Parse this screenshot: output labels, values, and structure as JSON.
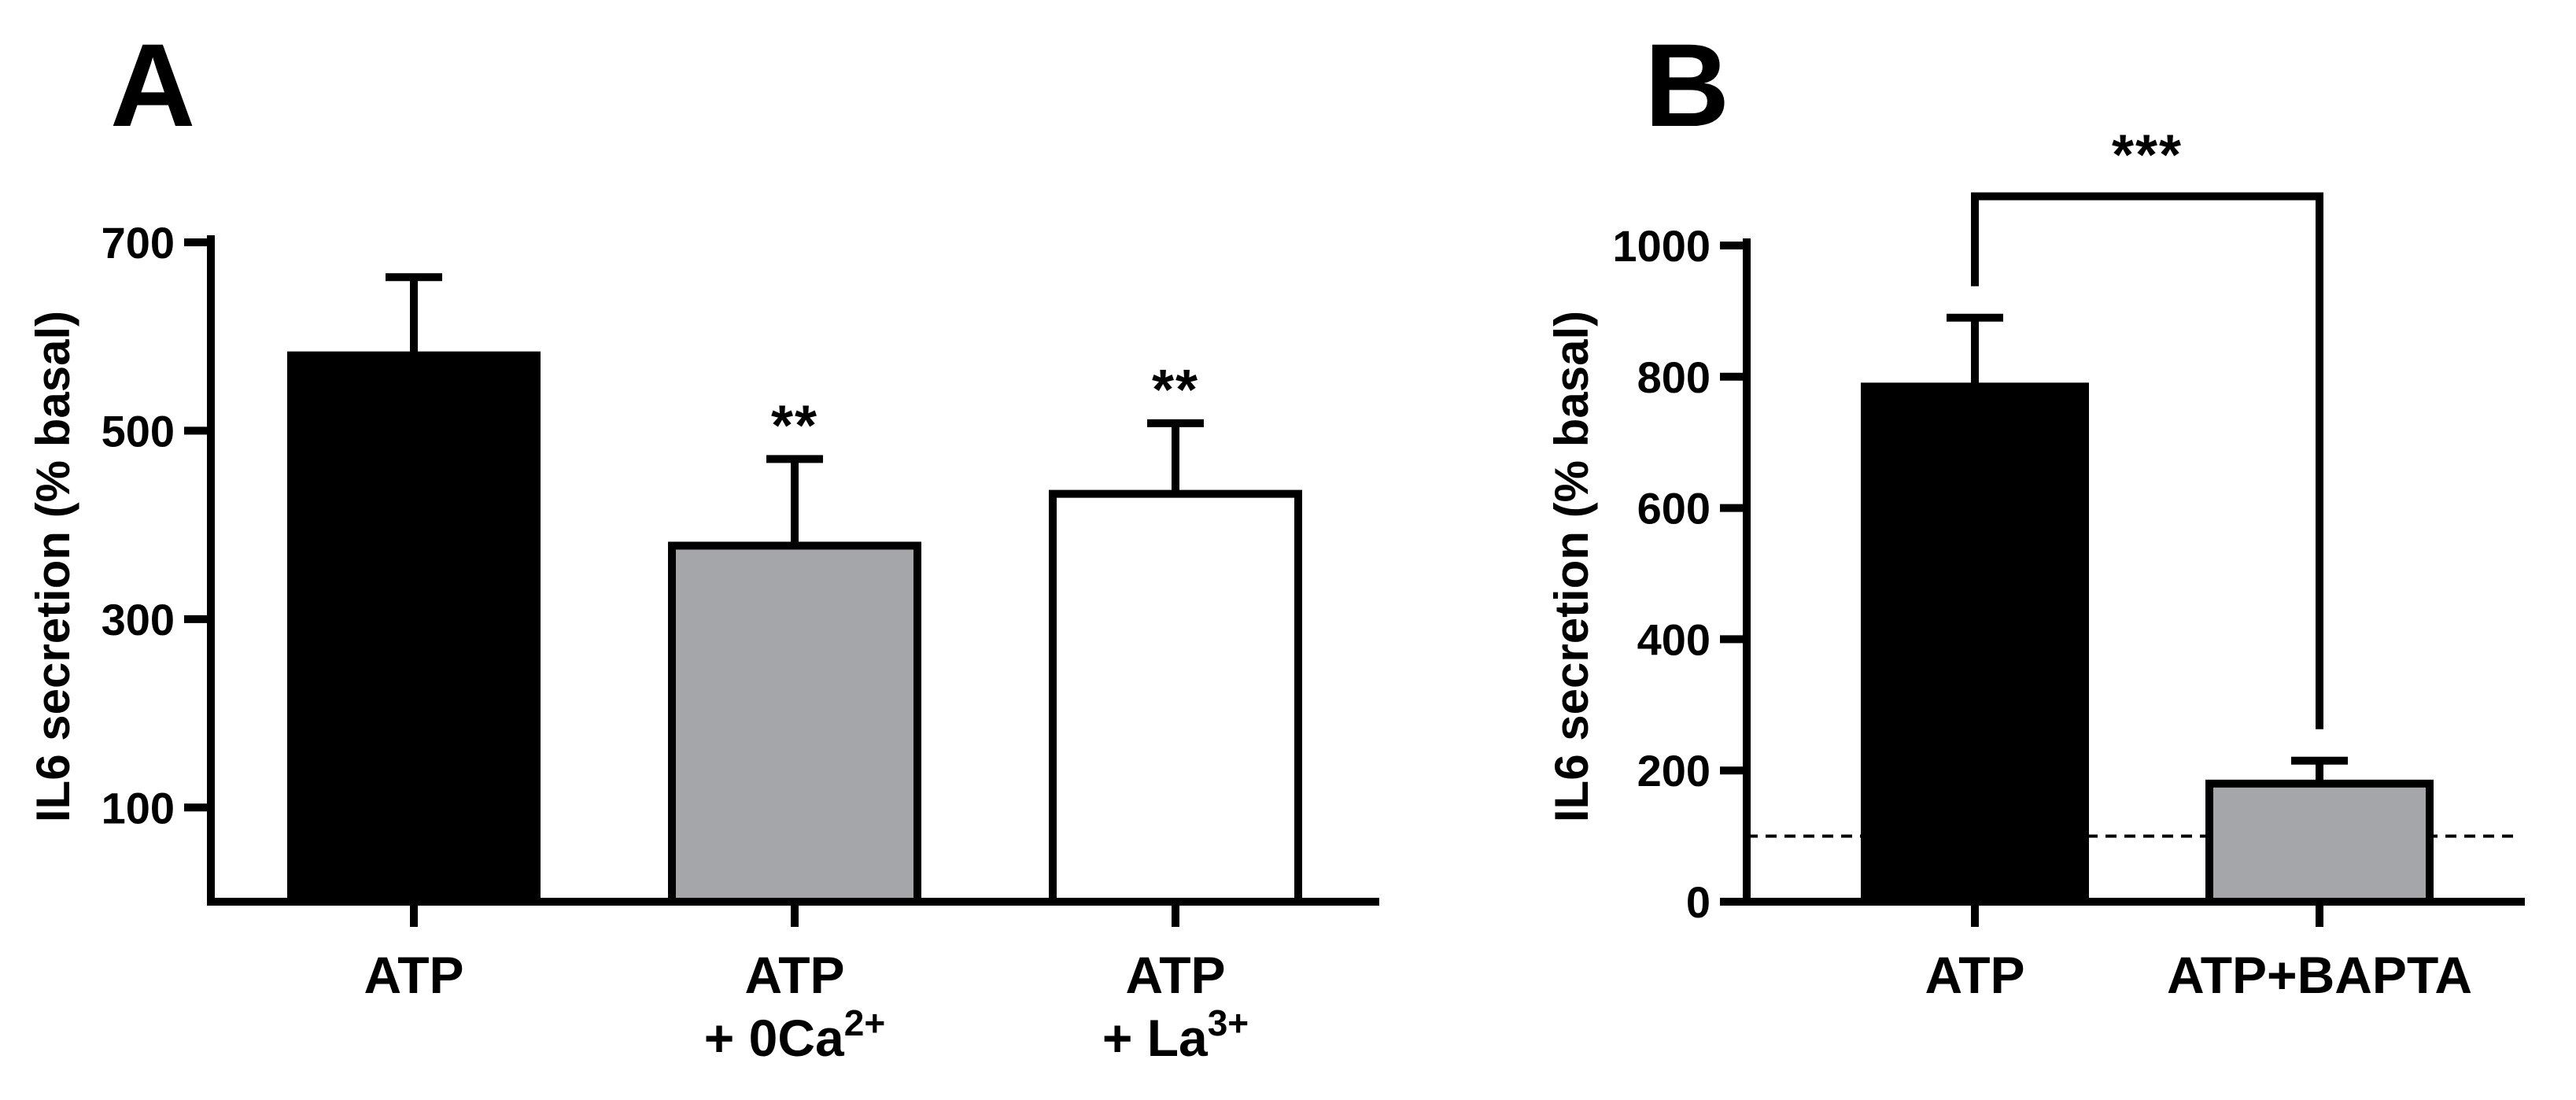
{
  "chart_data": [
    {
      "panel": "A",
      "type": "bar",
      "ylabel": "IL6 secretion (% basal)",
      "ylim": [
        0,
        700
      ],
      "yticks": [
        100,
        300,
        500,
        700
      ],
      "categories": [
        {
          "line1": "ATP",
          "line2_prefix": "",
          "line2_sup": ""
        },
        {
          "line1": "ATP",
          "line2_prefix": "+ 0Ca",
          "line2_sup": "2+"
        },
        {
          "line1": "ATP",
          "line2_prefix": "+ La",
          "line2_sup": "3+"
        }
      ],
      "values": [
        580,
        378,
        433
      ],
      "errors": [
        83,
        92,
        75
      ],
      "fills": [
        "#000000",
        "#a5a6a9",
        "#ffffff"
      ],
      "significance": [
        "",
        "**",
        "**"
      ]
    },
    {
      "panel": "B",
      "type": "bar",
      "ylabel": "IL6 secretion (% basal)",
      "ylim": [
        0,
        1000
      ],
      "yticks": [
        0,
        200,
        400,
        600,
        800,
        1000
      ],
      "categories": [
        {
          "line1": "ATP",
          "line2_prefix": "",
          "line2_sup": ""
        },
        {
          "line1": "ATP+BAPTA",
          "line2_prefix": "",
          "line2_sup": ""
        }
      ],
      "values": [
        785,
        180
      ],
      "errors": [
        105,
        35
      ],
      "fills": [
        "#000000",
        "#a5a6a9"
      ],
      "reference_line": 100,
      "bracket": {
        "from": 0,
        "to": 1,
        "level": 1075,
        "label": "***"
      }
    }
  ]
}
